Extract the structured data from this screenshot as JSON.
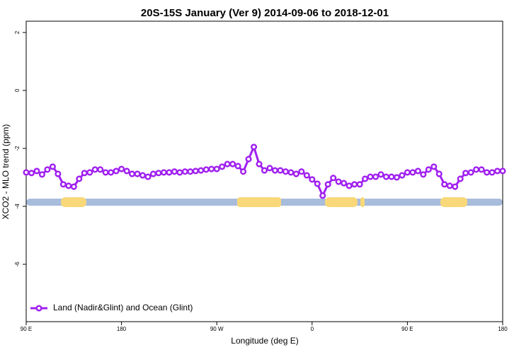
{
  "chart_data": {
    "type": "line",
    "title": "20S-15S January (Ver 9)   2014-09-06 to 2018-12-01",
    "x_label": "Longitude (deg E)",
    "y_label": "XCO2 - MLO trend (ppm)",
    "x": [
      90,
      95,
      100,
      105,
      110,
      115,
      120,
      125,
      130,
      135,
      140,
      145,
      150,
      155,
      160,
      165,
      170,
      175,
      180,
      185,
      190,
      195,
      200,
      205,
      210,
      215,
      220,
      225,
      230,
      235,
      240,
      245,
      250,
      255,
      260,
      265,
      270,
      275,
      280,
      285,
      290,
      295,
      300,
      305,
      310,
      315,
      320,
      325,
      330,
      335,
      340,
      345,
      350,
      355,
      360,
      365,
      370,
      375,
      380,
      385,
      390,
      395,
      400,
      405,
      410,
      415,
      420,
      425,
      430,
      435,
      440,
      445,
      450,
      455,
      460,
      465,
      470,
      475,
      480,
      485,
      490,
      495,
      500,
      505,
      510,
      515,
      520,
      525,
      530,
      535,
      540
    ],
    "series": [
      {
        "name": "Land (Nadir&Glint) and Ocean (Glint)",
        "color": "#a020f0",
        "values": [
          -2.83,
          -2.85,
          -2.78,
          -2.9,
          -2.73,
          -2.63,
          -2.88,
          -3.24,
          -3.29,
          -3.32,
          -3.05,
          -2.85,
          -2.83,
          -2.73,
          -2.73,
          -2.83,
          -2.83,
          -2.78,
          -2.71,
          -2.78,
          -2.88,
          -2.88,
          -2.93,
          -2.98,
          -2.88,
          -2.85,
          -2.83,
          -2.83,
          -2.8,
          -2.83,
          -2.8,
          -2.8,
          -2.78,
          -2.76,
          -2.73,
          -2.71,
          -2.71,
          -2.63,
          -2.54,
          -2.54,
          -2.61,
          -2.8,
          -2.37,
          -1.95,
          -2.54,
          -2.76,
          -2.68,
          -2.76,
          -2.76,
          -2.8,
          -2.83,
          -2.88,
          -2.8,
          -2.93,
          -3.07,
          -3.22,
          -3.63,
          -3.24,
          -3.02,
          -3.15,
          -3.2,
          -3.29,
          -3.24,
          -3.24,
          -3.05,
          -2.98,
          -2.98,
          -2.9,
          -2.98,
          -2.98,
          -3.0,
          -2.93,
          -2.83,
          -2.83,
          -2.78,
          -2.9,
          -2.73,
          -2.63,
          -2.88,
          -3.24,
          -3.29,
          -3.32,
          -3.05,
          -2.85,
          -2.83,
          -2.73,
          -2.73,
          -2.83,
          -2.83,
          -2.78,
          -2.78
        ]
      }
    ],
    "xlim": [
      90,
      540
    ],
    "xticks": [
      {
        "value": 90,
        "label": "90 E"
      },
      180,
      {
        "value": 270,
        "label": "90 W"
      },
      {
        "value": 360,
        "label": "0"
      },
      {
        "value": 450,
        "label": "90 E"
      },
      {
        "value": 540,
        "label": "180"
      }
    ],
    "ylim": [
      -7.98,
      2.39
    ],
    "yticks": [
      2,
      0,
      -2,
      -4,
      -6
    ],
    "legend": "bottomleft"
  }
}
